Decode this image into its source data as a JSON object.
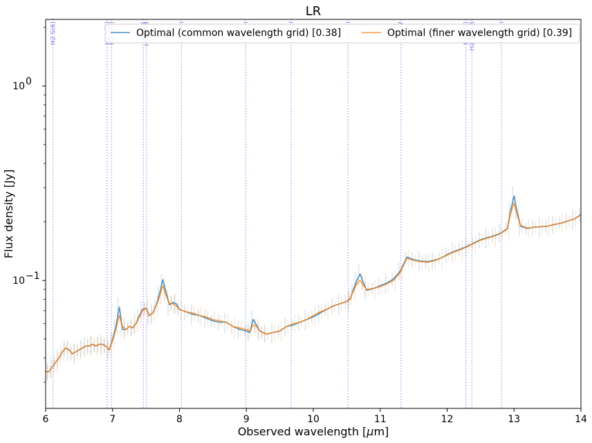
{
  "chart_data": {
    "type": "line",
    "title": "LR",
    "xlabel": "Observed wavelength [$\\mu$m]",
    "xlabel_text": "Observed wavelength [",
    "xlabel_mu": "μ",
    "xlabel_unit": "m]",
    "ylabel": "Flux density [Jy]",
    "xlim": [
      6,
      14
    ],
    "ylim": [
      0.022,
      2.2
    ],
    "yscale": "log",
    "xticks": [
      6,
      7,
      8,
      9,
      10,
      11,
      12,
      13,
      14
    ],
    "yticks": [
      {
        "value": 0.1,
        "base": "10",
        "exp": "−1"
      },
      {
        "value": 1,
        "base": "10",
        "exp": "0"
      }
    ],
    "legend_position": "top-right",
    "line_markers": [
      {
        "x": 6.11,
        "label": "H2 S(6)"
      },
      {
        "x": 6.92,
        "label": "H2 S(5)"
      },
      {
        "x": 6.985,
        "label": "H2 S(5)"
      },
      {
        "x": 7.46,
        "label": "HI 6-5"
      },
      {
        "x": 7.51,
        "label": "HI 6-5 8"
      },
      {
        "x": 8.03,
        "label": "I"
      },
      {
        "x": 8.99,
        "label": "I"
      },
      {
        "x": 9.67,
        "label": "I"
      },
      {
        "x": 10.52,
        "label": "I"
      },
      {
        "x": 11.31,
        "label": "7"
      },
      {
        "x": 12.28,
        "label": "H2 S(2)"
      },
      {
        "x": 12.37,
        "label": "H2 S(2) 6"
      },
      {
        "x": 12.81,
        "label": "I"
      }
    ],
    "series": [
      {
        "name": "Optimal (common wavelength grid) [0.38]",
        "color": "#1f77b4",
        "x": [
          6.0,
          6.05,
          6.1,
          6.15,
          6.2,
          6.25,
          6.3,
          6.35,
          6.4,
          6.45,
          6.5,
          6.55,
          6.6,
          6.65,
          6.7,
          6.75,
          6.8,
          6.85,
          6.9,
          6.95,
          7.0,
          7.05,
          7.1,
          7.15,
          7.2,
          7.25,
          7.3,
          7.35,
          7.4,
          7.45,
          7.5,
          7.55,
          7.6,
          7.65,
          7.7,
          7.75,
          7.8,
          7.85,
          7.9,
          7.95,
          8.0,
          8.1,
          8.2,
          8.3,
          8.4,
          8.5,
          8.6,
          8.7,
          8.8,
          8.9,
          9.0,
          9.05,
          9.1,
          9.15,
          9.2,
          9.25,
          9.3,
          9.4,
          9.5,
          9.6,
          9.7,
          9.8,
          9.9,
          10.0,
          10.1,
          10.2,
          10.3,
          10.4,
          10.5,
          10.55,
          10.6,
          10.65,
          10.7,
          10.75,
          10.8,
          10.9,
          11.0,
          11.1,
          11.2,
          11.3,
          11.4,
          11.5,
          11.6,
          11.7,
          11.8,
          11.9,
          12.0,
          12.1,
          12.2,
          12.3,
          12.4,
          12.5,
          12.6,
          12.7,
          12.8,
          12.9,
          12.95,
          13.0,
          13.05,
          13.1,
          13.2,
          13.3,
          13.4,
          13.5,
          13.6,
          13.7,
          13.8,
          13.9,
          14.0
        ],
        "y": [
          0.034,
          0.034,
          0.036,
          0.038,
          0.04,
          0.043,
          0.045,
          0.044,
          0.042,
          0.043,
          0.044,
          0.045,
          0.046,
          0.046,
          0.047,
          0.046,
          0.047,
          0.047,
          0.046,
          0.044,
          0.05,
          0.058,
          0.073,
          0.056,
          0.056,
          0.058,
          0.057,
          0.06,
          0.066,
          0.071,
          0.072,
          0.066,
          0.068,
          0.074,
          0.085,
          0.101,
          0.087,
          0.075,
          0.077,
          0.076,
          0.071,
          0.069,
          0.067,
          0.066,
          0.064,
          0.062,
          0.061,
          0.061,
          0.058,
          0.056,
          0.055,
          0.054,
          0.063,
          0.059,
          0.055,
          0.054,
          0.053,
          0.054,
          0.055,
          0.058,
          0.059,
          0.061,
          0.063,
          0.065,
          0.068,
          0.071,
          0.074,
          0.076,
          0.078,
          0.08,
          0.09,
          0.1,
          0.108,
          0.097,
          0.089,
          0.091,
          0.094,
          0.097,
          0.102,
          0.112,
          0.132,
          0.128,
          0.126,
          0.125,
          0.127,
          0.13,
          0.136,
          0.141,
          0.145,
          0.15,
          0.156,
          0.162,
          0.166,
          0.17,
          0.175,
          0.185,
          0.23,
          0.272,
          0.222,
          0.19,
          0.185,
          0.188,
          0.189,
          0.19,
          0.194,
          0.197,
          0.202,
          0.207,
          0.218
        ]
      },
      {
        "name": "Optimal (finer wavelength grid) [0.39]",
        "color": "#ff7f0e",
        "x": [
          6.0,
          6.05,
          6.1,
          6.15,
          6.2,
          6.25,
          6.3,
          6.35,
          6.4,
          6.45,
          6.5,
          6.55,
          6.6,
          6.65,
          6.7,
          6.75,
          6.8,
          6.85,
          6.9,
          6.95,
          7.0,
          7.05,
          7.1,
          7.15,
          7.2,
          7.25,
          7.3,
          7.35,
          7.4,
          7.45,
          7.5,
          7.55,
          7.6,
          7.65,
          7.7,
          7.75,
          7.8,
          7.85,
          7.9,
          7.95,
          8.0,
          8.1,
          8.2,
          8.3,
          8.4,
          8.5,
          8.6,
          8.7,
          8.8,
          8.9,
          9.0,
          9.05,
          9.1,
          9.15,
          9.2,
          9.25,
          9.3,
          9.4,
          9.5,
          9.6,
          9.7,
          9.8,
          9.9,
          10.0,
          10.1,
          10.2,
          10.3,
          10.4,
          10.5,
          10.55,
          10.6,
          10.65,
          10.7,
          10.75,
          10.8,
          10.9,
          11.0,
          11.1,
          11.2,
          11.3,
          11.4,
          11.5,
          11.6,
          11.7,
          11.8,
          11.9,
          12.0,
          12.1,
          12.2,
          12.3,
          12.4,
          12.5,
          12.6,
          12.7,
          12.8,
          12.9,
          12.95,
          13.0,
          13.05,
          13.1,
          13.2,
          13.3,
          13.4,
          13.5,
          13.6,
          13.7,
          13.8,
          13.9,
          14.0
        ],
        "y": [
          0.034,
          0.034,
          0.036,
          0.038,
          0.04,
          0.043,
          0.045,
          0.044,
          0.042,
          0.043,
          0.044,
          0.045,
          0.046,
          0.046,
          0.047,
          0.046,
          0.047,
          0.047,
          0.046,
          0.044,
          0.049,
          0.056,
          0.066,
          0.058,
          0.056,
          0.058,
          0.057,
          0.06,
          0.065,
          0.07,
          0.072,
          0.066,
          0.068,
          0.074,
          0.082,
          0.094,
          0.084,
          0.076,
          0.076,
          0.074,
          0.071,
          0.069,
          0.068,
          0.066,
          0.065,
          0.063,
          0.062,
          0.061,
          0.058,
          0.057,
          0.056,
          0.055,
          0.059,
          0.058,
          0.055,
          0.054,
          0.053,
          0.054,
          0.055,
          0.058,
          0.06,
          0.061,
          0.063,
          0.066,
          0.069,
          0.071,
          0.074,
          0.076,
          0.078,
          0.081,
          0.088,
          0.096,
          0.1,
          0.094,
          0.09,
          0.091,
          0.093,
          0.096,
          0.1,
          0.11,
          0.13,
          0.127,
          0.125,
          0.124,
          0.126,
          0.13,
          0.135,
          0.14,
          0.144,
          0.149,
          0.155,
          0.161,
          0.165,
          0.169,
          0.174,
          0.184,
          0.222,
          0.25,
          0.215,
          0.192,
          0.186,
          0.188,
          0.189,
          0.19,
          0.194,
          0.197,
          0.202,
          0.207,
          0.217
        ]
      }
    ]
  }
}
